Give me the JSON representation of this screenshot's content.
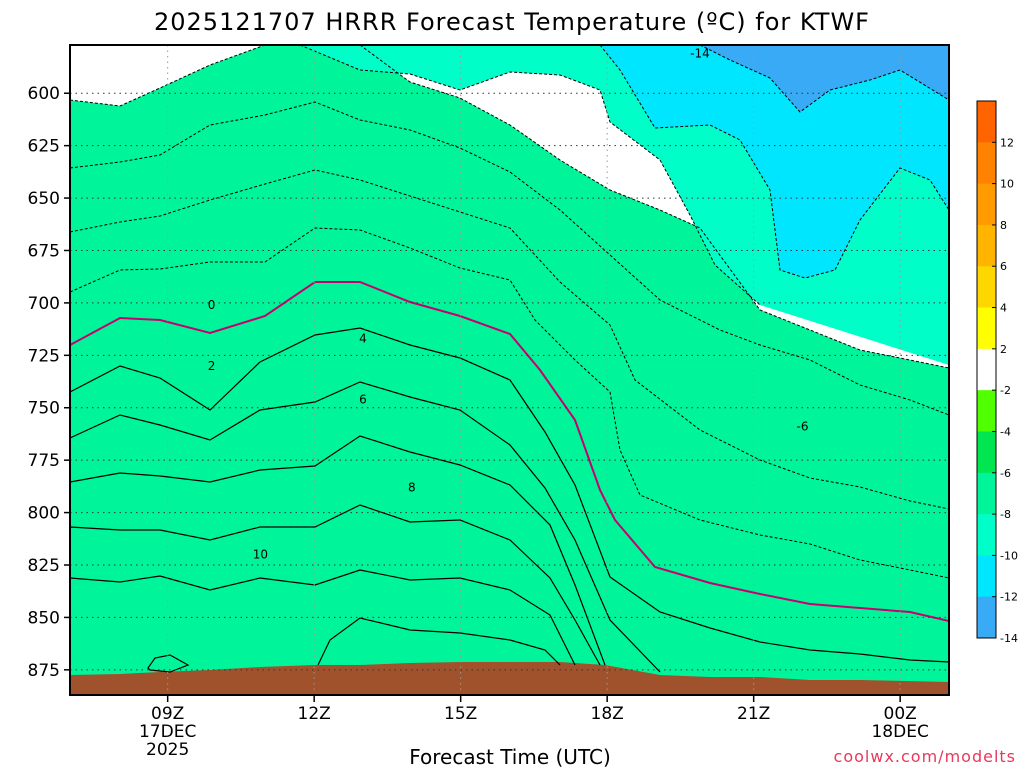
{
  "chart_data": {
    "type": "contour",
    "title": "2025121707 HRRR Forecast Temperature (ºC) for KTWF",
    "xlabel": "Forecast Time (UTC)",
    "credit": "coolwx.com/modelts",
    "x_ticks": [
      {
        "label": "09Z",
        "sub1": "17DEC",
        "sub2": "2025",
        "hour": 9
      },
      {
        "label": "12Z",
        "sub1": "",
        "sub2": "",
        "hour": 12
      },
      {
        "label": "15Z",
        "sub1": "",
        "sub2": "",
        "hour": 15
      },
      {
        "label": "18Z",
        "sub1": "",
        "sub2": "",
        "hour": 18
      },
      {
        "label": "21Z",
        "sub1": "",
        "sub2": "",
        "hour": 21
      },
      {
        "label": "00Z",
        "sub1": "18DEC",
        "sub2": "",
        "hour": 24
      }
    ],
    "xlim": [
      7,
      25
    ],
    "y_ticks": [
      "600",
      "625",
      "650",
      "675",
      "700",
      "725",
      "750",
      "775",
      "800",
      "825",
      "850",
      "875"
    ],
    "y_tick_values": [
      600,
      625,
      650,
      675,
      700,
      725,
      750,
      775,
      800,
      825,
      850,
      875
    ],
    "ylim": [
      577,
      887
    ],
    "y_axis": "pressure (hPa), decreasing upward",
    "grid": true,
    "contour_levels": [
      -14,
      -12,
      -10,
      -8,
      -6,
      -4,
      -2,
      0,
      2,
      4,
      6,
      8,
      10,
      12
    ],
    "fill_colors": [
      "#38aaf6",
      "#00e6ff",
      "#00ffc8",
      "#00f59b",
      "#00e650",
      "#50ff00",
      "#ffffff",
      "#ffffff",
      "#ffff00",
      "#ffd700",
      "#ffb400",
      "#ff9b00",
      "#ff8200",
      "#ff6400",
      "#a0522d"
    ],
    "colorbar": {
      "labels": [
        "12",
        "10",
        "8",
        "6",
        "4",
        "2",
        "-2",
        "-4",
        "-6",
        "-8",
        "-10",
        "-12",
        "-14"
      ],
      "colors": [
        "#ff6400",
        "#ff8200",
        "#ff9b00",
        "#ffb400",
        "#ffd700",
        "#ffff00",
        "#ffffff",
        "#50ff00",
        "#00e650",
        "#00f59b",
        "#00ffc8",
        "#00e6ff",
        "#38aaf6"
      ]
    },
    "contour_labels": [
      {
        "text": "-14",
        "hour": 19.9,
        "p": 581
      },
      {
        "text": "-6",
        "hour": 22.0,
        "p": 759
      },
      {
        "text": "0",
        "hour": 9.9,
        "p": 701
      },
      {
        "text": "2",
        "hour": 9.9,
        "p": 730
      },
      {
        "text": "4",
        "hour": 13.0,
        "p": 717
      },
      {
        "text": "6",
        "hour": 13.0,
        "p": 746
      },
      {
        "text": "8",
        "hour": 14.0,
        "p": 788
      },
      {
        "text": "10",
        "hour": 10.9,
        "p": 820
      }
    ],
    "ground_pressure_hPa": [
      878,
      878,
      876,
      876,
      876,
      876,
      874,
      874,
      874,
      874,
      874,
      878,
      878,
      878,
      880,
      880,
      880,
      880,
      880
    ]
  }
}
